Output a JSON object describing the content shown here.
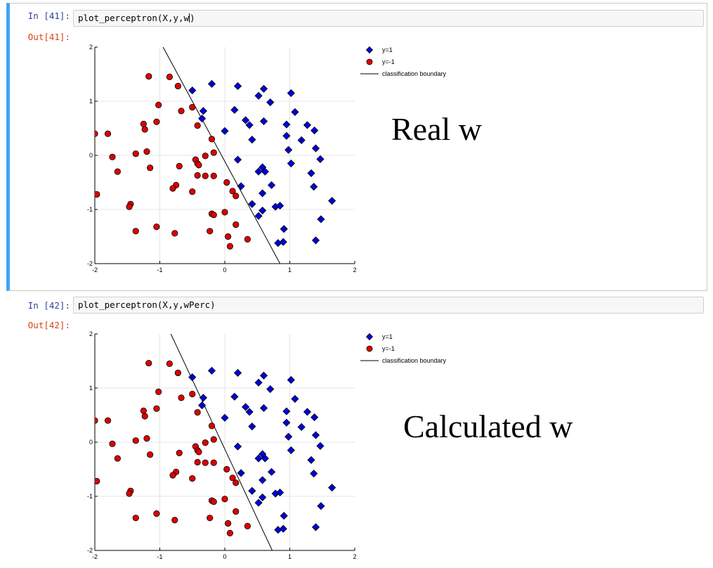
{
  "cells": [
    {
      "in_prompt": "In [41]:",
      "out_prompt": "Out[41]:",
      "code_fn": "plot_perceptron",
      "code_args": "X,y,w",
      "annotation": "Real w",
      "boundary": {
        "x1": -0.95,
        "y1": 2.0,
        "x2": 0.85,
        "y2": -2.0
      }
    },
    {
      "in_prompt": "In [42]:",
      "out_prompt": "Out[42]:",
      "code_fn": "plot_perceptron",
      "code_args": "X,y,wPerc",
      "annotation": "Calculated w",
      "boundary": {
        "x1": -0.83,
        "y1": 2.0,
        "x2": 0.73,
        "y2": -2.0
      }
    }
  ],
  "legend": {
    "pos": "y=1",
    "neg": "y=-1",
    "line": "classification boundary"
  },
  "colors": {
    "positive": "#0000dd",
    "negative": "#dd0000",
    "cell_selected": "#42a5f5"
  },
  "chart_data": {
    "type": "scatter",
    "xlim": [
      -2,
      2
    ],
    "ylim": [
      -2,
      2
    ],
    "xticks": [
      "-2",
      "-1",
      "0",
      "1",
      "2"
    ],
    "yticks": [
      "2",
      "1",
      "0",
      "-1",
      "-2"
    ],
    "grid": true,
    "legend_position": "right",
    "series": [
      {
        "name": "y=1",
        "marker": "diamond",
        "points": [
          [
            -0.5,
            1.2
          ],
          [
            -0.2,
            1.32
          ],
          [
            0.2,
            1.28
          ],
          [
            0.6,
            1.23
          ],
          [
            1.02,
            1.15
          ],
          [
            0.52,
            1.1
          ],
          [
            0.7,
            0.98
          ],
          [
            -0.33,
            0.82
          ],
          [
            0.15,
            0.84
          ],
          [
            1.08,
            0.8
          ],
          [
            -0.35,
            0.68
          ],
          [
            0.32,
            0.65
          ],
          [
            0.6,
            0.63
          ],
          [
            0.95,
            0.57
          ],
          [
            1.27,
            0.56
          ],
          [
            0.38,
            0.56
          ],
          [
            1.38,
            0.46
          ],
          [
            0.0,
            0.45
          ],
          [
            0.95,
            0.36
          ],
          [
            1.18,
            0.28
          ],
          [
            0.42,
            0.29
          ],
          [
            1.4,
            0.13
          ],
          [
            0.98,
            0.1
          ],
          [
            1.47,
            -0.07
          ],
          [
            0.2,
            -0.08
          ],
          [
            1.02,
            -0.15
          ],
          [
            0.58,
            -0.22
          ],
          [
            0.62,
            -0.3
          ],
          [
            0.52,
            -0.3
          ],
          [
            1.33,
            -0.33
          ],
          [
            0.25,
            -0.57
          ],
          [
            0.72,
            -0.55
          ],
          [
            1.37,
            -0.58
          ],
          [
            0.58,
            -0.7
          ],
          [
            0.42,
            -0.9
          ],
          [
            0.78,
            -0.95
          ],
          [
            0.85,
            -0.93
          ],
          [
            1.65,
            -0.84
          ],
          [
            0.58,
            -1.02
          ],
          [
            0.52,
            -1.12
          ],
          [
            1.48,
            -1.18
          ],
          [
            0.91,
            -1.36
          ],
          [
            1.4,
            -1.57
          ],
          [
            0.82,
            -1.62
          ],
          [
            0.9,
            -1.6
          ]
        ]
      },
      {
        "name": "y=-1",
        "marker": "circle",
        "points": [
          [
            -1.17,
            1.46
          ],
          [
            -0.85,
            1.45
          ],
          [
            -0.72,
            1.28
          ],
          [
            -1.02,
            0.93
          ],
          [
            -0.5,
            0.89
          ],
          [
            -0.67,
            0.82
          ],
          [
            -1.05,
            0.62
          ],
          [
            -1.25,
            0.58
          ],
          [
            -0.42,
            0.55
          ],
          [
            -1.23,
            0.48
          ],
          [
            -2.0,
            0.4
          ],
          [
            -1.8,
            0.4
          ],
          [
            -0.2,
            0.3
          ],
          [
            -1.2,
            0.07
          ],
          [
            -1.37,
            0.03
          ],
          [
            -0.17,
            0.05
          ],
          [
            -1.73,
            -0.03
          ],
          [
            -0.3,
            -0.01
          ],
          [
            -0.45,
            -0.08
          ],
          [
            -0.42,
            -0.15
          ],
          [
            -0.4,
            -0.18
          ],
          [
            -0.7,
            -0.2
          ],
          [
            -1.15,
            -0.23
          ],
          [
            -1.65,
            -0.3
          ],
          [
            -0.42,
            -0.37
          ],
          [
            -0.3,
            -0.38
          ],
          [
            -0.17,
            -0.38
          ],
          [
            0.03,
            -0.5
          ],
          [
            -0.75,
            -0.55
          ],
          [
            -0.8,
            -0.61
          ],
          [
            0.12,
            -0.66
          ],
          [
            -0.5,
            -0.67
          ],
          [
            0.17,
            -0.75
          ],
          [
            -1.97,
            -0.72
          ],
          [
            -1.45,
            -0.9
          ],
          [
            -1.47,
            -0.95
          ],
          [
            -0.2,
            -1.08
          ],
          [
            -0.17,
            -1.1
          ],
          [
            0.0,
            -1.05
          ],
          [
            -1.05,
            -1.32
          ],
          [
            -1.37,
            -1.4
          ],
          [
            0.17,
            -1.28
          ],
          [
            -0.77,
            -1.44
          ],
          [
            -0.23,
            -1.4
          ],
          [
            0.05,
            -1.5
          ],
          [
            0.35,
            -1.55
          ],
          [
            0.08,
            -1.68
          ]
        ]
      }
    ]
  }
}
